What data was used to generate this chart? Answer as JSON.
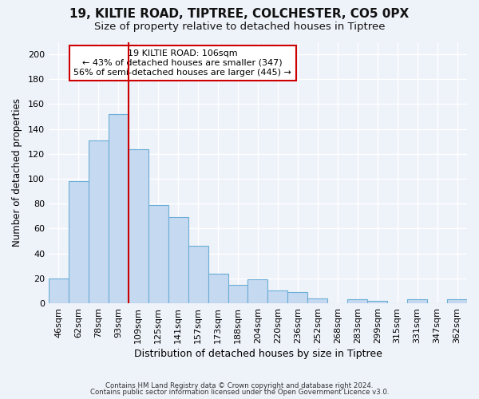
{
  "title_line1": "19, KILTIE ROAD, TIPTREE, COLCHESTER, CO5 0PX",
  "title_line2": "Size of property relative to detached houses in Tiptree",
  "xlabel": "Distribution of detached houses by size in Tiptree",
  "ylabel": "Number of detached properties",
  "categories": [
    "46sqm",
    "62sqm",
    "78sqm",
    "93sqm",
    "109sqm",
    "125sqm",
    "141sqm",
    "157sqm",
    "173sqm",
    "188sqm",
    "204sqm",
    "220sqm",
    "236sqm",
    "252sqm",
    "268sqm",
    "283sqm",
    "299sqm",
    "315sqm",
    "331sqm",
    "347sqm",
    "362sqm"
  ],
  "values": [
    20,
    98,
    131,
    152,
    124,
    79,
    69,
    46,
    24,
    15,
    19,
    10,
    9,
    4,
    0,
    3,
    2,
    0,
    3,
    0,
    3
  ],
  "bar_color": "#c5d9f0",
  "bar_edge_color": "#6baed6",
  "vline_color": "#cc0000",
  "annotation_title": "19 KILTIE ROAD: 106sqm",
  "annotation_line1": "← 43% of detached houses are smaller (347)",
  "annotation_line2": "56% of semi-detached houses are larger (445) →",
  "annotation_box_facecolor": "#ffffff",
  "annotation_box_edgecolor": "#cc0000",
  "ylim": [
    0,
    210
  ],
  "yticks": [
    0,
    20,
    40,
    60,
    80,
    100,
    120,
    140,
    160,
    180,
    200
  ],
  "footer_line1": "Contains HM Land Registry data © Crown copyright and database right 2024.",
  "footer_line2": "Contains public sector information licensed under the Open Government Licence v3.0.",
  "bg_color": "#eef2f9",
  "grid_color": "#ffffff",
  "title_fontsize": 11,
  "subtitle_fontsize": 9.5
}
